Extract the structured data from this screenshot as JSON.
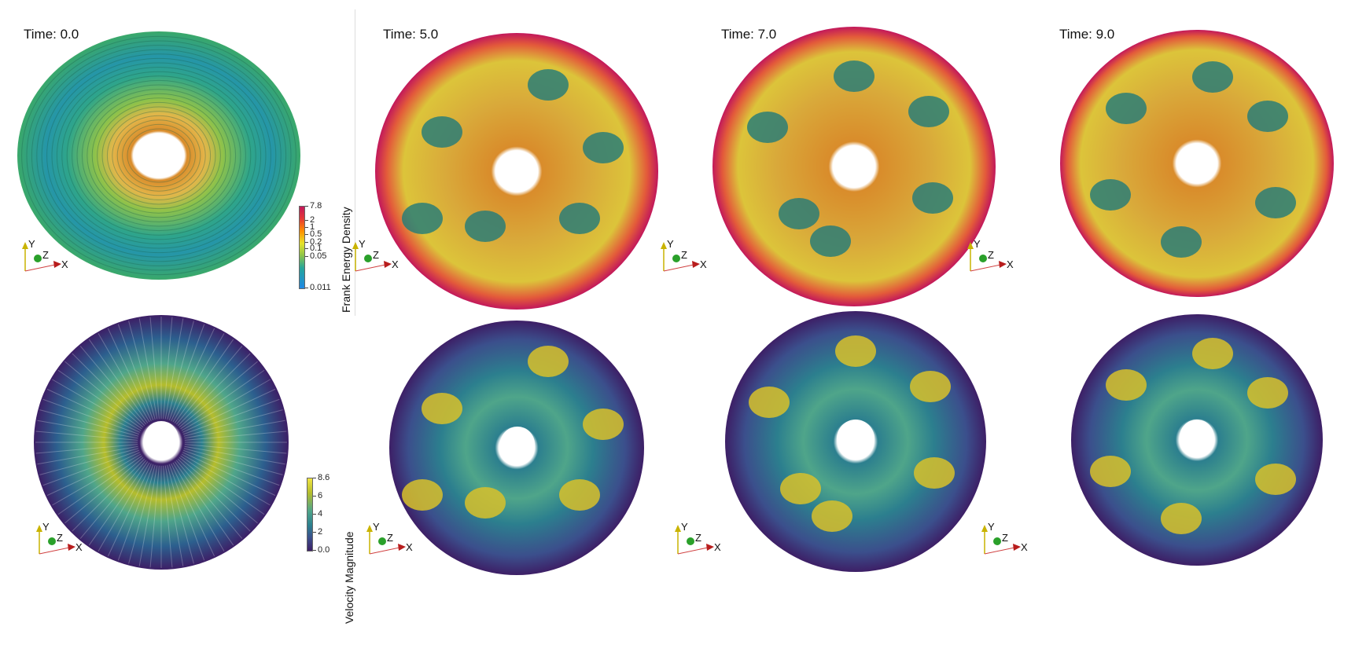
{
  "top_row": {
    "panels": [
      {
        "time_label": "Time: 0.0"
      },
      {
        "time_label": "Time: 5.0"
      },
      {
        "time_label": "Time: 7.0"
      },
      {
        "time_label": "Time: 9.0"
      }
    ],
    "colorbar": {
      "title": "Frank Energy Density",
      "ticks": [
        "7.8",
        "2",
        "1",
        "0.5",
        "0.2",
        "0.1",
        "0.05",
        "0.011"
      ],
      "scale": "log",
      "colors": [
        "#c2185b",
        "#e53935",
        "#ffb300",
        "#e6e22a",
        "#8bc34a",
        "#26a69a",
        "#1e88e5"
      ]
    }
  },
  "bottom_row": {
    "colorbar": {
      "title": "Velocity Magnitude",
      "ticks": [
        "8.6",
        "6",
        "4",
        "2",
        "0.0"
      ],
      "colors": [
        "#f0e442",
        "#b5bd2c",
        "#4fa58a",
        "#2c7f8e",
        "#3b4f8c",
        "#3d1f66"
      ]
    }
  },
  "axes_labels": {
    "y": "Y",
    "z": "Z",
    "x": "X"
  },
  "icons": [
    "orientation-axes-icon"
  ]
}
